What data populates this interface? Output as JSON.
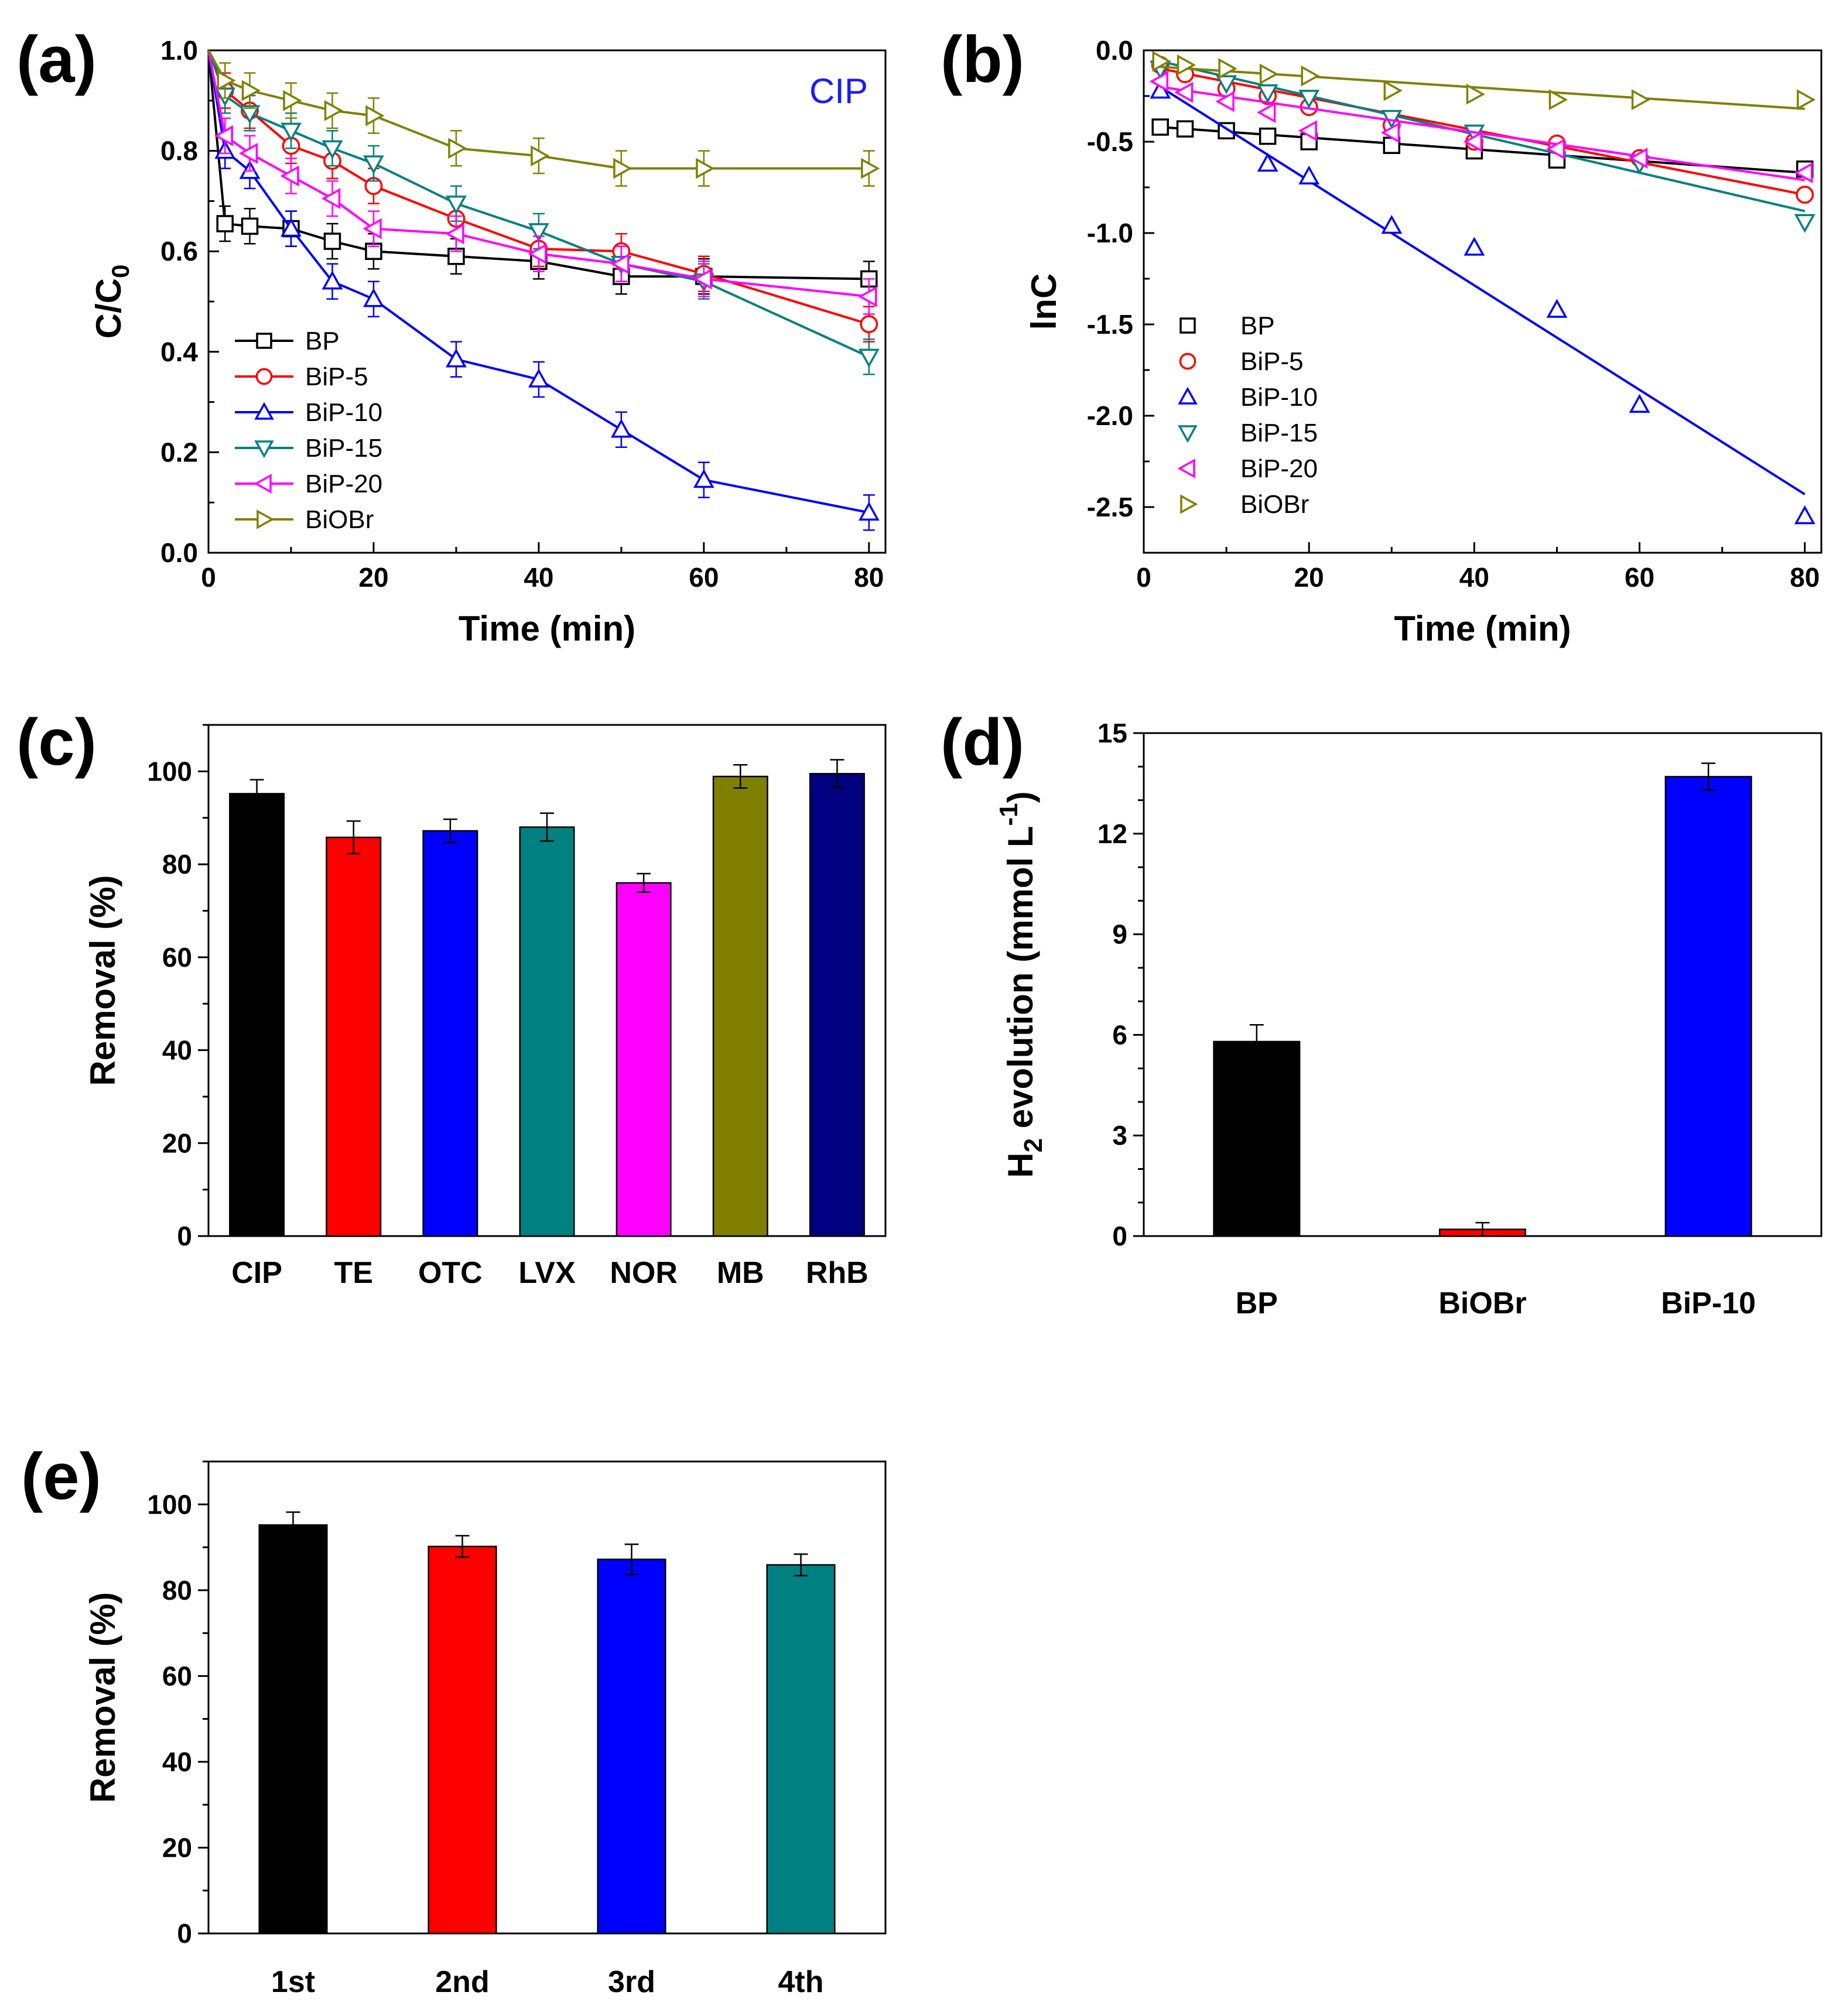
{
  "chart_data": [
    {
      "panel": "(a)",
      "type": "line",
      "xlabel": "Time (min)",
      "ylabel": "C/C",
      "ylabel_sub": "0",
      "annotation": "CIP",
      "annotation_color": "#1a1aff",
      "xlim": [
        0,
        82
      ],
      "ylim": [
        0,
        1.0
      ],
      "xticks": [
        "0",
        "20",
        "40",
        "60",
        "80"
      ],
      "yticks": [
        "0.0",
        "0.2",
        "0.4",
        "0.6",
        "0.8",
        "1.0"
      ],
      "legend_position": "bottom-left",
      "series": [
        {
          "name": "BP",
          "color": "#000000",
          "marker": "square",
          "x": [
            0,
            2,
            5,
            10,
            15,
            20,
            30,
            40,
            50,
            60,
            80
          ],
          "y": [
            1.0,
            0.655,
            0.65,
            0.645,
            0.62,
            0.6,
            0.59,
            0.58,
            0.55,
            0.55,
            0.545
          ]
        },
        {
          "name": "BiP-5",
          "color": "#ff0000",
          "marker": "circle",
          "x": [
            0,
            2,
            5,
            10,
            15,
            20,
            30,
            40,
            50,
            60,
            80
          ],
          "y": [
            1.0,
            0.92,
            0.88,
            0.81,
            0.78,
            0.73,
            0.665,
            0.605,
            0.6,
            0.555,
            0.455
          ]
        },
        {
          "name": "BiP-10",
          "color": "#0000ff",
          "marker": "triangle-up",
          "x": [
            0,
            2,
            5,
            10,
            15,
            20,
            30,
            40,
            50,
            60,
            80
          ],
          "y": [
            1.0,
            0.8,
            0.76,
            0.645,
            0.54,
            0.505,
            0.385,
            0.345,
            0.245,
            0.145,
            0.08
          ]
        },
        {
          "name": "BiP-15",
          "color": "#008080",
          "marker": "triangle-down",
          "x": [
            0,
            2,
            5,
            10,
            15,
            20,
            30,
            40,
            50,
            60,
            80
          ],
          "y": [
            1.0,
            0.91,
            0.875,
            0.84,
            0.805,
            0.775,
            0.695,
            0.64,
            0.575,
            0.54,
            0.39
          ]
        },
        {
          "name": "BiP-20",
          "color": "#ff00ff",
          "marker": "triangle-left",
          "x": [
            0,
            2,
            5,
            10,
            15,
            20,
            30,
            40,
            50,
            60,
            80
          ],
          "y": [
            1.0,
            0.83,
            0.795,
            0.75,
            0.705,
            0.645,
            0.635,
            0.595,
            0.575,
            0.545,
            0.51
          ]
        },
        {
          "name": "BiOBr",
          "color": "#808000",
          "marker": "triangle-right",
          "x": [
            0,
            2,
            5,
            10,
            15,
            20,
            30,
            40,
            50,
            60,
            80
          ],
          "y": [
            1.0,
            0.94,
            0.92,
            0.9,
            0.88,
            0.87,
            0.805,
            0.79,
            0.765,
            0.765,
            0.765
          ]
        }
      ]
    },
    {
      "panel": "(b)",
      "type": "scatter",
      "xlabel": "Time (min)",
      "ylabel": "lnC",
      "xlim": [
        0,
        82
      ],
      "ylim": [
        -2.75,
        0
      ],
      "xticks": [
        "0",
        "20",
        "40",
        "60",
        "80"
      ],
      "yticks": [
        "0.0",
        "-0.5",
        "-1.0",
        "-1.5",
        "-2.0",
        "-2.5"
      ],
      "legend_position": "bottom-left",
      "series": [
        {
          "name": "BP",
          "color": "#000000",
          "marker": "square",
          "x": [
            2,
            5,
            10,
            15,
            20,
            30,
            40,
            50,
            80
          ],
          "y": [
            -0.42,
            -0.43,
            -0.44,
            -0.47,
            -0.5,
            -0.52,
            -0.55,
            -0.6,
            -0.65
          ],
          "fit": [
            [
              2,
              -0.42
            ],
            [
              80,
              -0.67
            ]
          ]
        },
        {
          "name": "BiP-5",
          "color": "#ff0000",
          "marker": "circle",
          "x": [
            2,
            5,
            10,
            15,
            20,
            30,
            40,
            50,
            60,
            80
          ],
          "y": [
            -0.08,
            -0.13,
            -0.21,
            -0.25,
            -0.31,
            -0.41,
            -0.5,
            -0.51,
            -0.59,
            -0.79
          ],
          "fit": [
            [
              2,
              -0.1
            ],
            [
              80,
              -0.79
            ]
          ]
        },
        {
          "name": "BiP-10",
          "color": "#0000ff",
          "marker": "triangle-up",
          "x": [
            2,
            15,
            20,
            30,
            40,
            50,
            60,
            80
          ],
          "y": [
            -0.22,
            -0.62,
            -0.69,
            -0.96,
            -1.08,
            -1.42,
            -1.94,
            -2.55
          ],
          "fit": [
            [
              2,
              -0.2
            ],
            [
              80,
              -2.43
            ]
          ]
        },
        {
          "name": "BiP-15",
          "color": "#008080",
          "marker": "triangle-down",
          "x": [
            2,
            10,
            15,
            20,
            30,
            40,
            60,
            80
          ],
          "y": [
            -0.1,
            -0.18,
            -0.23,
            -0.26,
            -0.37,
            -0.45,
            -0.62,
            -0.94
          ],
          "fit": [
            [
              2,
              -0.06
            ],
            [
              80,
              -0.88
            ]
          ]
        },
        {
          "name": "BiP-20",
          "color": "#ff00ff",
          "marker": "triangle-left",
          "x": [
            2,
            5,
            10,
            15,
            20,
            30,
            40,
            50,
            60,
            80
          ],
          "y": [
            -0.17,
            -0.23,
            -0.28,
            -0.34,
            -0.44,
            -0.45,
            -0.5,
            -0.54,
            -0.59,
            -0.67
          ],
          "fit": [
            [
              2,
              -0.2
            ],
            [
              80,
              -0.71
            ]
          ]
        },
        {
          "name": "BiOBr",
          "color": "#808000",
          "marker": "triangle-right",
          "x": [
            2,
            5,
            10,
            15,
            20,
            30,
            40,
            50,
            60,
            80
          ],
          "y": [
            -0.06,
            -0.08,
            -0.1,
            -0.13,
            -0.14,
            -0.22,
            -0.24,
            -0.27,
            -0.27,
            -0.27
          ],
          "fit": [
            [
              2,
              -0.09
            ],
            [
              80,
              -0.32
            ]
          ]
        }
      ]
    },
    {
      "panel": "(c)",
      "type": "bar",
      "ylabel": "Removal (%)",
      "ylim": [
        0,
        110
      ],
      "yticks": [
        "0",
        "20",
        "40",
        "60",
        "80",
        "100"
      ],
      "categories": [
        "CIP",
        "TE",
        "OTC",
        "LVX",
        "NOR",
        "MB",
        "RhB"
      ],
      "values": [
        95.2,
        85.8,
        87.2,
        88.0,
        76.0,
        98.9,
        99.5
      ],
      "errors": [
        3.0,
        3.5,
        2.5,
        3.0,
        2.0,
        2.5,
        3.0
      ],
      "colors": [
        "#000000",
        "#ff0000",
        "#0000ff",
        "#008080",
        "#ff00ff",
        "#808000",
        "#000080"
      ]
    },
    {
      "panel": "(d)",
      "type": "bar",
      "ylabel": "H",
      "ylabel_sub": "2",
      "ylabel_rest": " evolution (mmol L",
      "ylabel_sup": "-1",
      "ylabel_end": ")",
      "ylim": [
        0,
        15
      ],
      "yticks": [
        "0",
        "3",
        "6",
        "9",
        "12",
        "15"
      ],
      "categories": [
        "BP",
        "BiOBr",
        "BiP-10"
      ],
      "values": [
        5.8,
        0.2,
        13.7
      ],
      "errors": [
        0.5,
        0.2,
        0.4
      ],
      "colors": [
        "#000000",
        "#ff0000",
        "#0000ff"
      ]
    },
    {
      "panel": "(e)",
      "type": "bar",
      "ylabel": "Removal (%)",
      "ylim": [
        0,
        110
      ],
      "yticks": [
        "0",
        "20",
        "40",
        "60",
        "80",
        "100"
      ],
      "categories": [
        "1st",
        "2nd",
        "3rd",
        "4th"
      ],
      "values": [
        95.2,
        90.2,
        87.2,
        85.9
      ],
      "errors": [
        3.0,
        2.5,
        3.5,
        2.5
      ],
      "colors": [
        "#000000",
        "#ff0000",
        "#0000ff",
        "#008080"
      ]
    }
  ]
}
